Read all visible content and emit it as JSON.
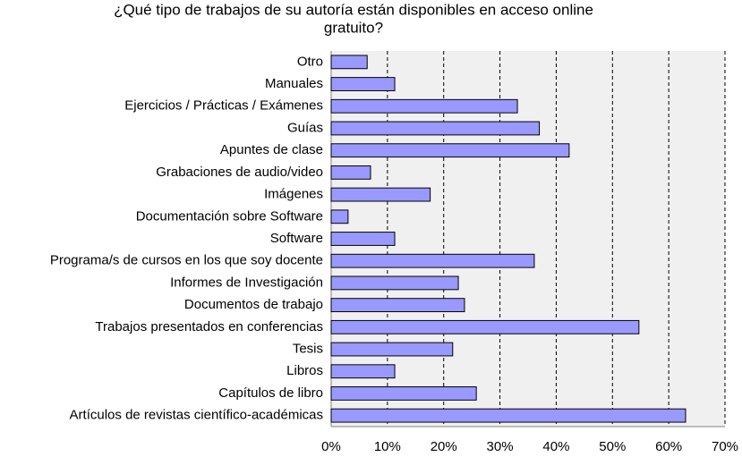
{
  "chart_data": {
    "type": "bar",
    "orientation": "horizontal",
    "title": [
      "¿Qué tipo de trabajos de su autoría están disponibles en acceso online",
      "gratuito?"
    ],
    "categories": [
      "Otro",
      "Manuales",
      "Ejercicios / Prácticas / Exámenes",
      "Guías",
      "Apuntes de clase",
      "Grabaciones de audio/video",
      "Imágenes",
      "Documentación sobre Software",
      "Software",
      "Programa/s de cursos en los que soy docente",
      "Informes de Investigación",
      "Documentos de trabajo",
      "Trabajos presentados en conferencias",
      "Tesis",
      "Libros",
      "Capítulos de libro",
      "Artículos de revistas científico-académicas"
    ],
    "values": [
      6.4,
      11.3,
      33.1,
      37.0,
      42.3,
      7.0,
      17.6,
      3.0,
      11.3,
      36.1,
      22.6,
      23.7,
      54.7,
      21.6,
      11.3,
      25.8,
      63.0
    ],
    "color": "#9999ff",
    "xlim": [
      0,
      70
    ],
    "xticks": [
      {
        "value": 0,
        "label": "0%"
      },
      {
        "value": 10,
        "label": "10%"
      },
      {
        "value": 20,
        "label": "20%"
      },
      {
        "value": 30,
        "label": "30%"
      },
      {
        "value": 40,
        "label": "40%"
      },
      {
        "value": 50,
        "label": "50%"
      },
      {
        "value": 60,
        "label": "60%"
      },
      {
        "value": 70,
        "label": "70%"
      }
    ],
    "grid": true
  }
}
